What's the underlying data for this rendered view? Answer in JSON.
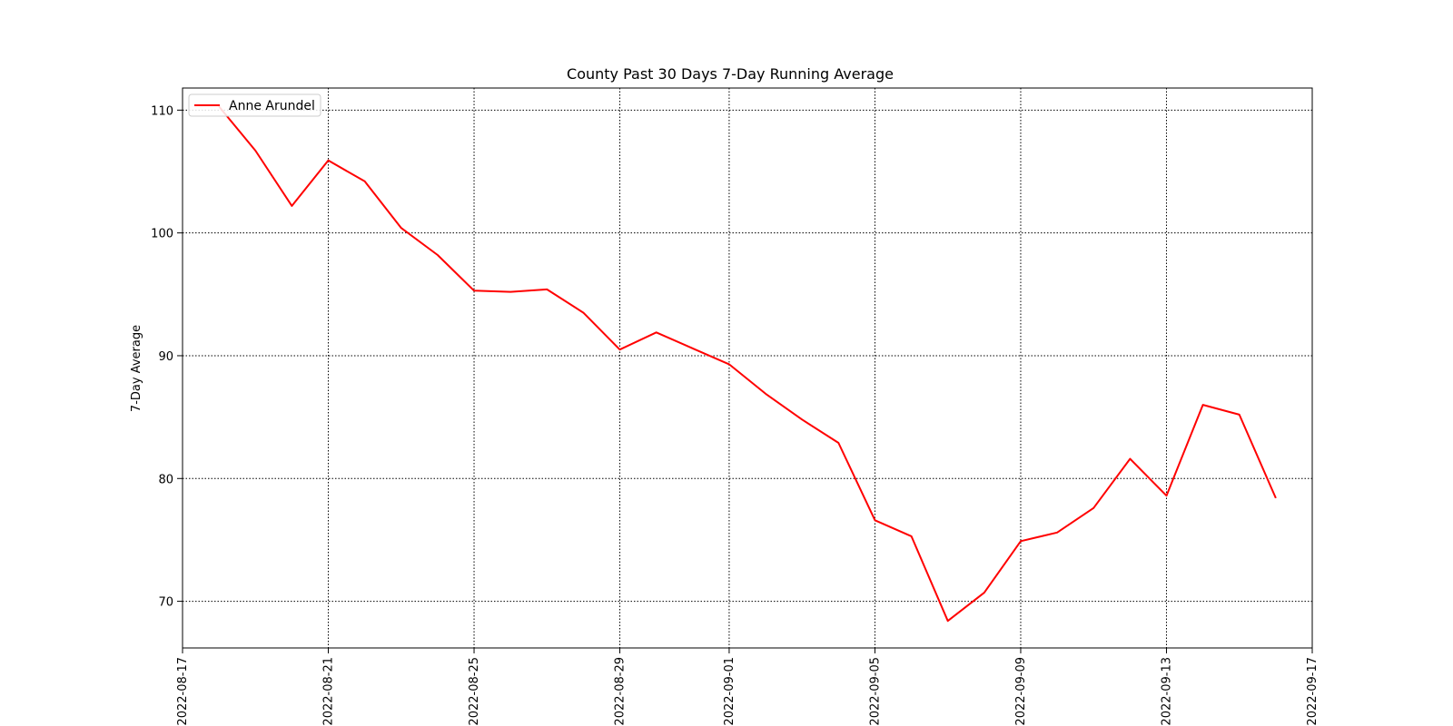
{
  "chart_data": {
    "type": "line",
    "title": "County Past 30 Days 7-Day Running Average",
    "xlabel": "",
    "ylabel": "7-Day Average",
    "x_ticks": [
      "2022-08-17",
      "2022-08-21",
      "2022-08-25",
      "2022-08-29",
      "2022-09-01",
      "2022-09-05",
      "2022-09-09",
      "2022-09-13",
      "2022-09-17"
    ],
    "y_ticks": [
      70,
      80,
      90,
      100,
      110
    ],
    "xlim": [
      "2022-08-17",
      "2022-09-17"
    ],
    "ylim": [
      66.2,
      111.8
    ],
    "grid": true,
    "legend_position": "upper-left",
    "line_color": "#ff0000",
    "series": [
      {
        "name": "Anne Arundel",
        "x": [
          "2022-08-18",
          "2022-08-19",
          "2022-08-20",
          "2022-08-21",
          "2022-08-22",
          "2022-08-23",
          "2022-08-24",
          "2022-08-25",
          "2022-08-26",
          "2022-08-27",
          "2022-08-28",
          "2022-08-29",
          "2022-08-30",
          "2022-08-31",
          "2022-09-01",
          "2022-09-02",
          "2022-09-03",
          "2022-09-04",
          "2022-09-05",
          "2022-09-06",
          "2022-09-07",
          "2022-09-08",
          "2022-09-09",
          "2022-09-10",
          "2022-09-11",
          "2022-09-12",
          "2022-09-13",
          "2022-09-14",
          "2022-09-15",
          "2022-09-16"
        ],
        "values": [
          110.3,
          106.7,
          102.2,
          105.9,
          104.2,
          100.4,
          98.2,
          95.3,
          95.2,
          95.4,
          93.5,
          90.5,
          91.9,
          90.6,
          89.3,
          86.9,
          84.8,
          82.9,
          76.6,
          75.3,
          68.4,
          70.7,
          74.9,
          75.6,
          77.6,
          81.6,
          78.6,
          86.0,
          85.2,
          78.4
        ]
      }
    ]
  }
}
